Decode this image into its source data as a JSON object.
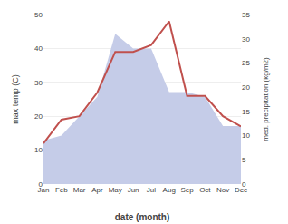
{
  "chart_data": {
    "type": "line",
    "categories": [
      "Jan",
      "Feb",
      "Mar",
      "Apr",
      "May",
      "Jun",
      "Jul",
      "Aug",
      "Sep",
      "Oct",
      "Nov",
      "Dec"
    ],
    "series": [
      {
        "type": "area",
        "color": "#c5cce8",
        "axis": "y2",
        "values": [
          9,
          10,
          14,
          18,
          31,
          28,
          28,
          19,
          19,
          18,
          12,
          12
        ]
      },
      {
        "type": "line",
        "color": "#c0504d",
        "values": [
          12,
          19,
          20,
          27,
          39,
          39,
          41,
          48,
          26,
          26,
          20,
          17
        ]
      }
    ],
    "xlabel": "date (month)",
    "ylabel": "max temp (C)",
    "y2label": "med. precipitation (kg/m2)",
    "ylim": [
      0,
      50
    ],
    "yticks": [
      0,
      10,
      20,
      30,
      40,
      50
    ],
    "y2lim": [
      0,
      35
    ],
    "y2ticks": [
      0,
      5,
      10,
      15,
      20,
      25,
      30,
      35
    ],
    "grid": true
  }
}
